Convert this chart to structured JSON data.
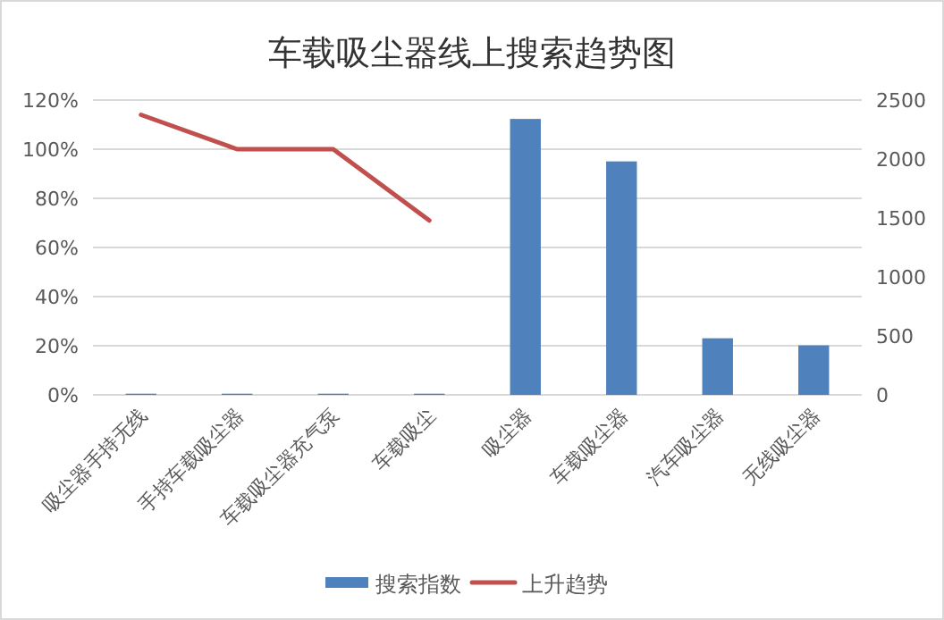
{
  "chart_data": {
    "type": "bar",
    "title": "车载吸尘器线上搜索趋势图",
    "categories": [
      "吸尘器手持无线",
      "手持车载吸尘器",
      "车载吸尘器充气泵",
      "车载吸尘",
      "吸尘器",
      "车载吸尘器",
      "汽车吸尘器",
      "无线吸尘器"
    ],
    "series": [
      {
        "name": "搜索指数",
        "axis": "y2",
        "color": "#4f81bd",
        "values": [
          10,
          10,
          10,
          10,
          2340,
          1980,
          480,
          420
        ]
      },
      {
        "name": "上升趋势",
        "type": "line",
        "axis": "y",
        "color": "#c0504d",
        "values": [
          114,
          100,
          100,
          71,
          null,
          null,
          null,
          null
        ]
      }
    ],
    "ylim": [
      0,
      120
    ],
    "yticks": [
      {
        "value": 0,
        "label": "0%"
      },
      {
        "value": 20,
        "label": "20%"
      },
      {
        "value": 40,
        "label": "40%"
      },
      {
        "value": 60,
        "label": "60%"
      },
      {
        "value": 80,
        "label": "80%"
      },
      {
        "value": 100,
        "label": "100%"
      },
      {
        "value": 120,
        "label": "120%"
      }
    ],
    "y2lim": [
      0,
      2500
    ],
    "y2ticks": [
      0,
      500,
      1000,
      1500,
      2000,
      2500
    ],
    "grid": "y",
    "legend": "bottom"
  }
}
